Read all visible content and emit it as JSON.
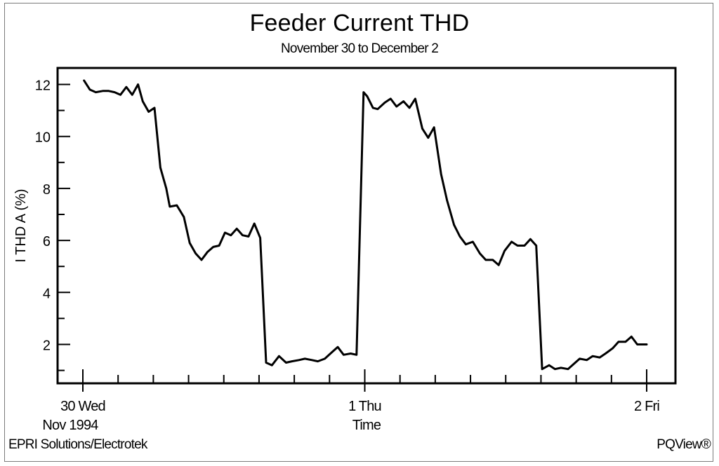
{
  "chart_data": {
    "type": "line",
    "title": "Feeder Current THD",
    "subtitle": "November 30 to December 2",
    "ylabel": "I THD A (%)",
    "xlabel": "Time",
    "ylim": [
      0.5,
      12.7
    ],
    "yticks": [
      2,
      4,
      6,
      8,
      10,
      12
    ],
    "xrange_hours": [
      -3,
      51
    ],
    "xticks": [
      {
        "hour": 0,
        "label": "30 Wed",
        "sublabel": "Nov 1994"
      },
      {
        "hour": 24,
        "label": "1 Thu",
        "sublabel": ""
      },
      {
        "hour": 48,
        "label": "2 Fri",
        "sublabel": ""
      }
    ],
    "grid": false,
    "series": [
      {
        "color": "#000000",
        "x": [
          0.1,
          0.6,
          1.1,
          1.7,
          2.2,
          2.7,
          3.2,
          3.7,
          4.2,
          4.7,
          5.1,
          5.6,
          6.1,
          6.6,
          7.1,
          7.4,
          8.0,
          8.6,
          9.1,
          9.6,
          10.1,
          10.6,
          11.1,
          11.6,
          12.1,
          12.6,
          13.1,
          13.6,
          14.1,
          14.6,
          15.1,
          15.6,
          16.1,
          16.7,
          17.3,
          17.8,
          18.4,
          18.9,
          19.5,
          20.0,
          20.6,
          21.2,
          21.7,
          22.2,
          22.8,
          23.3,
          23.9,
          24.2,
          24.7,
          25.1,
          25.7,
          26.2,
          26.7,
          27.3,
          27.8,
          28.3,
          28.9,
          29.4,
          29.9,
          30.5,
          31.0,
          31.6,
          32.1,
          32.6,
          33.2,
          33.8,
          34.3,
          34.9,
          35.4,
          35.9,
          36.5,
          37.0,
          37.6,
          38.1,
          38.6,
          39.1,
          39.7,
          40.2,
          40.7,
          41.3,
          41.8,
          42.3,
          42.9,
          43.4,
          44.0,
          44.5,
          45.1,
          45.6,
          46.2,
          46.7,
          47.2,
          47.7,
          48.0
        ],
        "y": [
          12.15,
          11.8,
          11.7,
          11.75,
          11.75,
          11.7,
          11.6,
          11.9,
          11.6,
          12.0,
          11.35,
          10.95,
          11.1,
          8.8,
          8.0,
          7.3,
          7.35,
          6.9,
          5.9,
          5.5,
          5.25,
          5.55,
          5.75,
          5.8,
          6.3,
          6.2,
          6.45,
          6.2,
          6.15,
          6.65,
          6.1,
          1.3,
          1.2,
          1.55,
          1.3,
          1.35,
          1.4,
          1.45,
          1.4,
          1.35,
          1.45,
          1.7,
          1.9,
          1.6,
          1.65,
          1.6,
          11.7,
          11.55,
          11.1,
          11.05,
          11.3,
          11.45,
          11.15,
          11.35,
          11.1,
          11.45,
          10.3,
          9.95,
          10.35,
          8.55,
          7.55,
          6.6,
          6.15,
          5.85,
          5.95,
          5.5,
          5.25,
          5.25,
          5.05,
          5.6,
          5.95,
          5.8,
          5.8,
          6.05,
          5.8,
          1.05,
          1.2,
          1.05,
          1.1,
          1.05,
          1.25,
          1.45,
          1.4,
          1.55,
          1.5,
          1.65,
          1.85,
          2.1,
          2.1,
          2.3,
          2.0,
          2.0,
          2.0
        ]
      }
    ]
  },
  "footer": {
    "left": "EPRI Solutions/Electrotek",
    "right": "PQView®"
  }
}
